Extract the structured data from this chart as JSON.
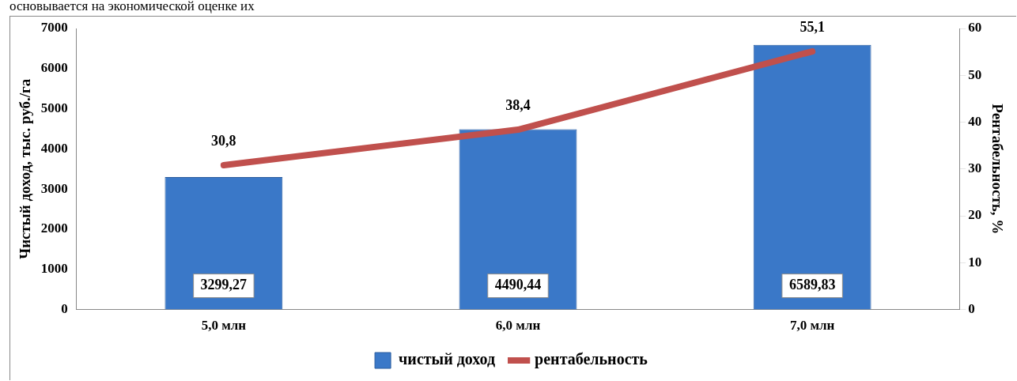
{
  "chart_data": {
    "type": "bar",
    "categories": [
      "5,0 млн",
      "6,0 млн",
      "7,0 млн"
    ],
    "ylabel": "Чистый доход, тыс. руб./га",
    "y2label": "Рентабельность, %",
    "ylim": [
      0,
      7000
    ],
    "yticks": [
      0,
      1000,
      2000,
      3000,
      4000,
      5000,
      6000,
      7000
    ],
    "y2lim": [
      0,
      60
    ],
    "y2ticks": [
      0,
      10,
      20,
      30,
      40,
      50,
      60
    ],
    "grid": false,
    "legend": "bottom",
    "marker": "none",
    "annotations": [
      "основывается на экономической оценке их"
    ],
    "series": [
      {
        "name": "чистый доход",
        "color": "#3a78c8",
        "values": [
          3299.27,
          4490.44,
          6589.83
        ],
        "value_labels": [
          "3299,27",
          "4490,44",
          "6589,83"
        ]
      },
      {
        "name": "рентабельность",
        "type": "line",
        "axis": "y2",
        "color": "#c0504d",
        "values": [
          30.8,
          38.4,
          55.1
        ],
        "value_labels": [
          "30,8",
          "38,4",
          "55,1"
        ]
      }
    ]
  }
}
